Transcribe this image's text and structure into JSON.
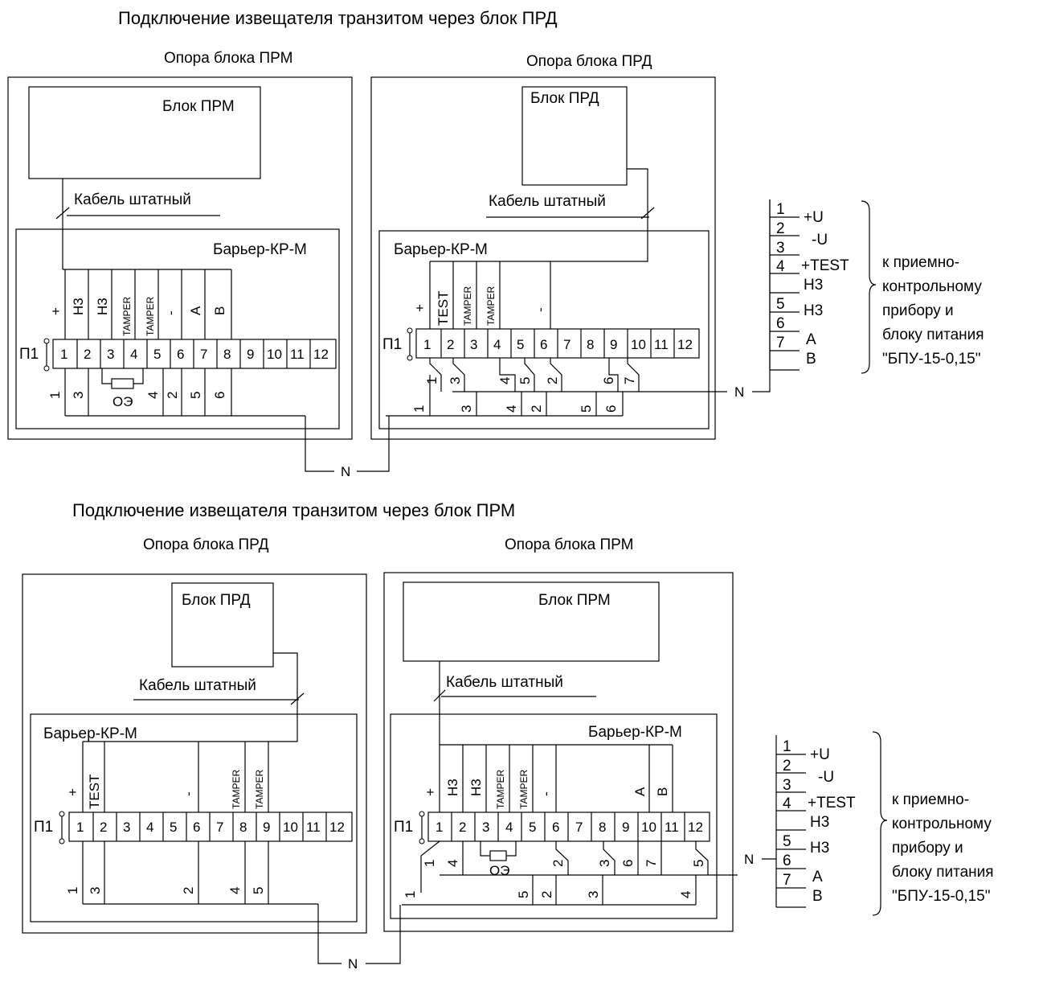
{
  "diagram": {
    "top": {
      "title": "Подключение  извещателя транзитом через блок ПРД",
      "left_support": "Опора блока ПРМ",
      "right_support": "Опора блока ПРД",
      "left_unit": "Блок ПРМ",
      "right_unit": "Блок ПРД",
      "left_cable": "Кабель штатный",
      "right_cable": "Кабель штатный",
      "left_board": "Барьер-КР-М",
      "right_board": "Барьер-КР-М",
      "left_signals": [
        "+",
        "Н3",
        "Н3",
        "TAMPER",
        "TAMPER",
        "-",
        "А",
        "В"
      ],
      "right_signals": [
        "+",
        "TEST",
        "TAMPER",
        "TAMPER",
        "-"
      ],
      "terminal_label": "П1",
      "terminals": [
        "1",
        "2",
        "3",
        "4",
        "5",
        "6",
        "7",
        "8",
        "9",
        "10",
        "11",
        "12"
      ],
      "left_bottom": [
        "1",
        "3",
        "ОЭ",
        "4",
        "2",
        "5",
        "6"
      ],
      "right_upper": [
        "1",
        "3",
        "4",
        "5",
        "2",
        "6",
        "7"
      ],
      "right_lower": [
        "1",
        "3",
        "4",
        "2",
        "5",
        "6"
      ],
      "node": "N",
      "node_right": "N"
    },
    "bottom": {
      "title": "Подключение  извещателя транзитом через блок ПРМ",
      "left_support": "Опора блока ПРД",
      "right_support": "Опора блока ПРМ",
      "left_unit": "Блок ПРД",
      "right_unit": "Блок ПРМ",
      "left_cable": "Кабель штатный",
      "right_cable": "Кабель штатный",
      "left_board": "Барьер-КР-М",
      "right_board": "Барьер-КР-М",
      "left_signals": [
        "+",
        "TEST",
        "-",
        "TAMPER",
        "TAMPER"
      ],
      "right_signals": [
        "+",
        "Н3",
        "Н3",
        "TAMPER",
        "TAMPER",
        "-",
        "А",
        "В"
      ],
      "terminal_label": "П1",
      "terminals": [
        "1",
        "2",
        "3",
        "4",
        "5",
        "6",
        "7",
        "8",
        "9",
        "10",
        "11",
        "12"
      ],
      "left_bottom": [
        "1",
        "3",
        "2",
        "4",
        "5"
      ],
      "right_upper": [
        "1",
        "4",
        "ОЭ",
        "2",
        "3",
        "6",
        "7",
        "5"
      ],
      "right_lower": [
        "1",
        "5",
        "2",
        "3",
        "4"
      ],
      "node": "N",
      "node_right": "N"
    },
    "connector": {
      "rows": [
        {
          "num": "1",
          "sig": "+U"
        },
        {
          "num": "2",
          "sig": "-U"
        },
        {
          "num": "3",
          "sig": "+TEST"
        },
        {
          "num": "4",
          "sig": "Н3"
        },
        {
          "num": "5",
          "sig": "Н3"
        },
        {
          "num": "6",
          "sig": "А"
        },
        {
          "num": "7",
          "sig": "В"
        }
      ],
      "note": [
        "к приемно-",
        "контрольному",
        "прибору и",
        "блоку питания",
        "\"БПУ-15-0,15\""
      ]
    }
  }
}
